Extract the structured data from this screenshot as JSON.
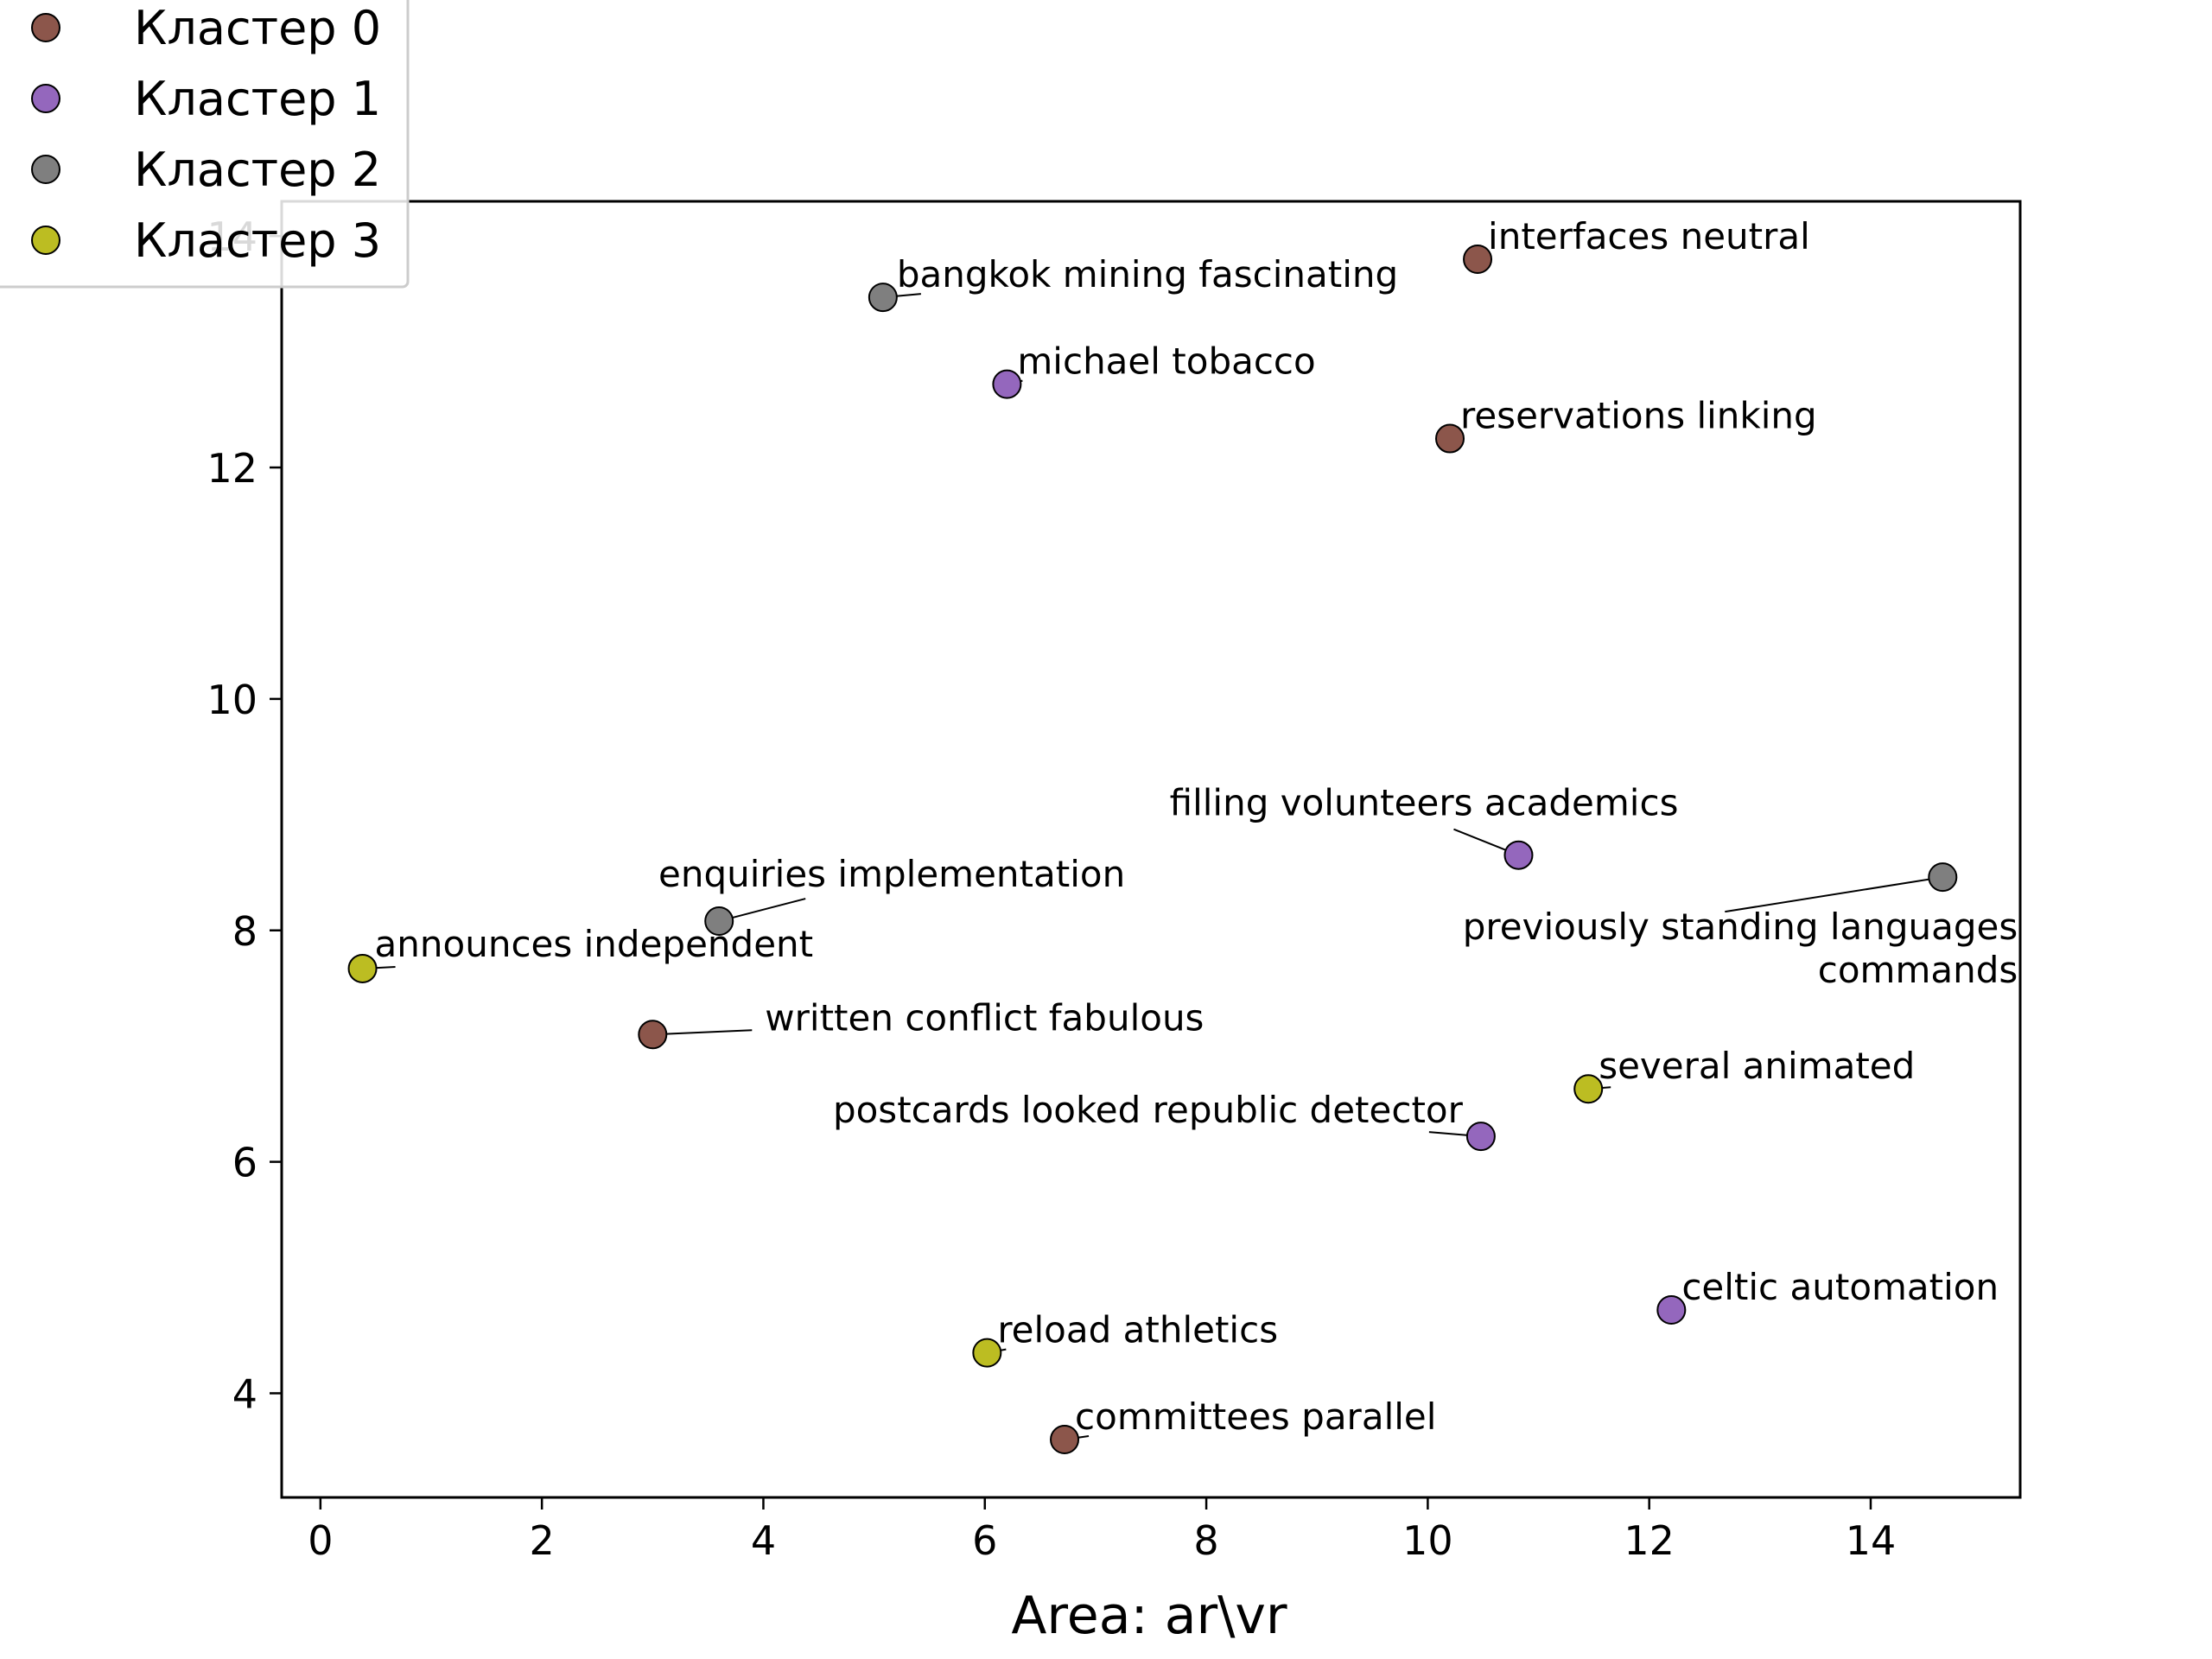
{
  "chart_data": {
    "type": "scatter",
    "xlabel": "Area: ar\\vr",
    "ylabel": "",
    "title": "",
    "xlim": [
      -0.35,
      15.35
    ],
    "ylim": [
      3.1,
      14.3
    ],
    "xticks": [
      "0",
      "2",
      "4",
      "6",
      "8",
      "10",
      "12",
      "14"
    ],
    "yticks": [
      "4",
      "6",
      "8",
      "10",
      "12"
    ],
    "ytick_values": [
      4,
      6,
      8,
      10,
      12
    ],
    "xtick_values": [
      0,
      2,
      4,
      6,
      8,
      10,
      12,
      14
    ],
    "partial_ytick": "14",
    "grid": false,
    "legend_position": "top-left",
    "series": [
      {
        "name": "Кластер 0",
        "color": "#8c564b",
        "points": [
          {
            "x": 10.45,
            "y": 13.8,
            "label": "interfaces neutral"
          },
          {
            "x": 10.2,
            "y": 12.25,
            "label": "reservations linking"
          },
          {
            "x": 3.0,
            "y": 7.1,
            "label": "written conflict fabulous"
          },
          {
            "x": 6.72,
            "y": 3.6,
            "label": "committees parallel"
          }
        ]
      },
      {
        "name": "Кластер 1",
        "color": "#9467bd",
        "points": [
          {
            "x": 6.2,
            "y": 12.72,
            "label": "michael tobacco"
          },
          {
            "x": 10.82,
            "y": 8.65,
            "label": "filling volunteers academics"
          },
          {
            "x": 10.48,
            "y": 6.22,
            "label": "postcards looked republic detector"
          },
          {
            "x": 12.2,
            "y": 4.72,
            "label": "celtic automation"
          }
        ]
      },
      {
        "name": "Кластер 2",
        "color": "#7f7f7f",
        "points": [
          {
            "x": 5.08,
            "y": 13.47,
            "label": "bangkok mining fascinating"
          },
          {
            "x": 3.6,
            "y": 8.08,
            "label": "enquiries implementation"
          },
          {
            "x": 14.65,
            "y": 8.46,
            "label": "previously standing languages commands"
          }
        ]
      },
      {
        "name": "Кластер 3",
        "color": "#bcbd22",
        "points": [
          {
            "x": 0.38,
            "y": 7.67,
            "label": "announces independent"
          },
          {
            "x": 11.45,
            "y": 6.63,
            "label": "several animated"
          },
          {
            "x": 6.02,
            "y": 4.35,
            "label": "reload athletics"
          }
        ]
      }
    ]
  }
}
